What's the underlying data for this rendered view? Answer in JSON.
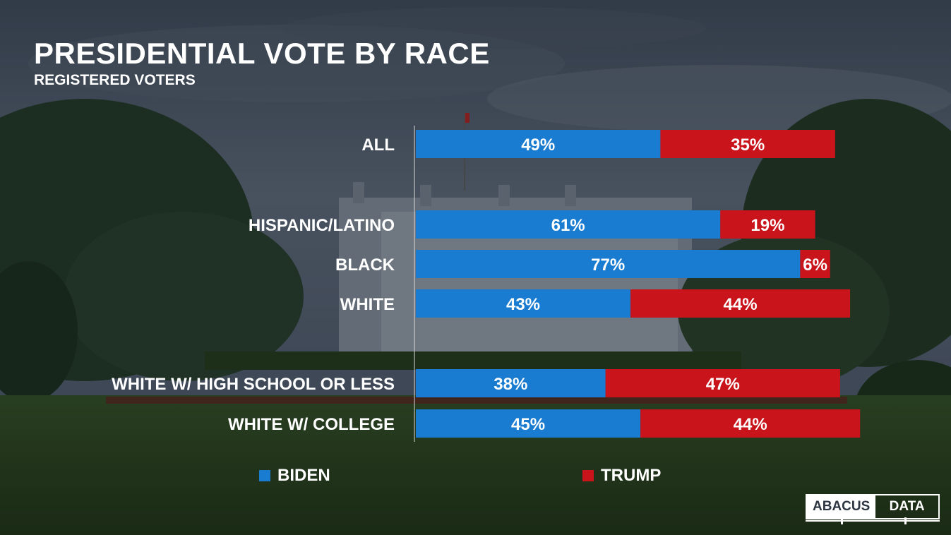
{
  "header": {
    "title": "PRESIDENTIAL VOTE BY RACE",
    "subtitle": "REGISTERED VOTERS"
  },
  "legend": {
    "biden": "BIDEN",
    "trump": "TRUMP"
  },
  "logo": {
    "part1": "ABACUS",
    "part2": "DATA"
  },
  "colors": {
    "biden": "#1a7cd0",
    "trump": "#c8141a"
  },
  "chart_data": {
    "type": "bar",
    "orientation": "horizontal",
    "stacked": true,
    "categories": [
      "ALL",
      "HISPANIC/LATINO",
      "BLACK",
      "WHITE",
      "WHITE W/ HIGH SCHOOL OR LESS",
      "WHITE W/ COLLEGE"
    ],
    "series": [
      {
        "name": "BIDEN",
        "values": [
          49,
          61,
          77,
          43,
          38,
          45
        ]
      },
      {
        "name": "TRUMP",
        "values": [
          35,
          19,
          6,
          44,
          47,
          44
        ]
      }
    ],
    "title": "PRESIDENTIAL VOTE BY RACE",
    "subtitle": "REGISTERED VOTERS",
    "xlim": [
      0,
      100
    ],
    "legend_position": "bottom"
  }
}
